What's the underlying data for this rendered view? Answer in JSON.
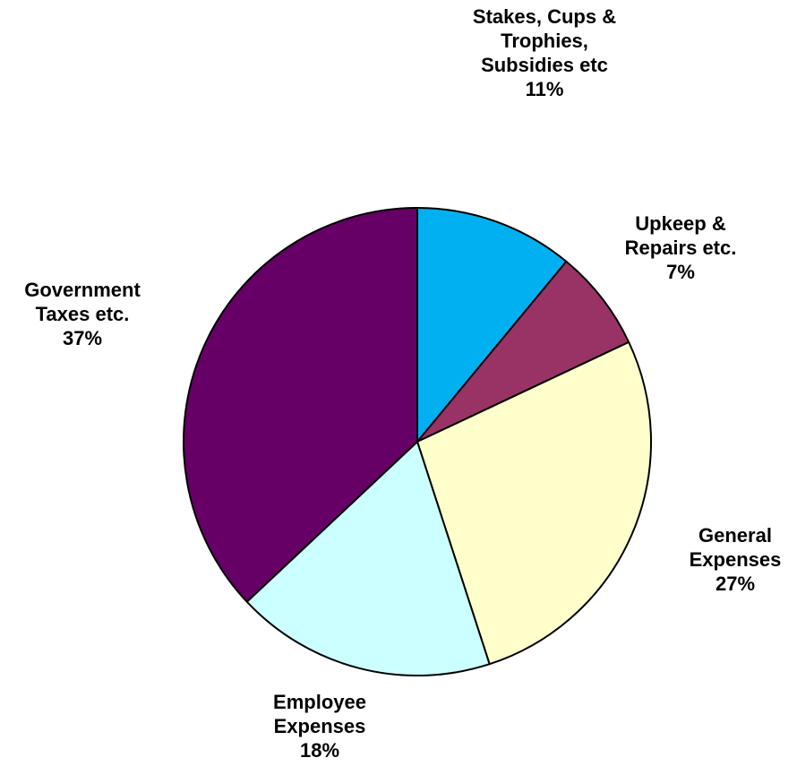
{
  "chart_data": {
    "type": "pie",
    "title": "",
    "start_angle_deg": 0,
    "direction": "clockwise",
    "slices": [
      {
        "lines": [
          "Stakes, Cups &",
          "Trophies,",
          "Subsidies etc"
        ],
        "label": "Stakes, Cups & Trophies, Subsidies etc",
        "value": 11,
        "percent_label": "11%",
        "color": "#00B0F0"
      },
      {
        "lines": [
          "Upkeep &",
          "Repairs etc."
        ],
        "label": "Upkeep & Repairs etc.",
        "value": 7,
        "percent_label": "7%",
        "color": "#993366"
      },
      {
        "lines": [
          "General",
          "Expenses"
        ],
        "label": "General Expenses",
        "value": 27,
        "percent_label": "27%",
        "color": "#FFFFCC"
      },
      {
        "lines": [
          "Employee",
          "Expenses"
        ],
        "label": "Employee Expenses",
        "value": 18,
        "percent_label": "18%",
        "color": "#CCFFFF"
      },
      {
        "lines": [
          "Government",
          "Taxes etc."
        ],
        "label": "Government Taxes etc.",
        "value": 37,
        "percent_label": "37%",
        "color": "#660066"
      }
    ],
    "legend": "none",
    "slice_border_color": "#000000"
  }
}
